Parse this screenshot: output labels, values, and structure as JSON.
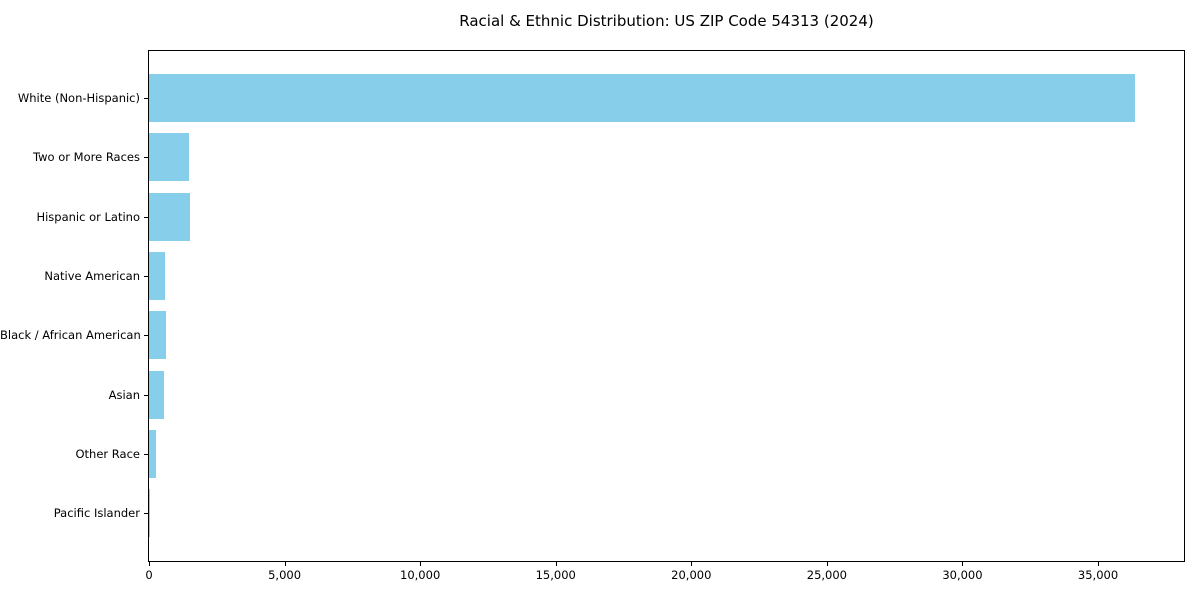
{
  "chart_data": {
    "type": "bar",
    "orientation": "horizontal",
    "title": "Racial & Ethnic Distribution: US ZIP Code 54313 (2024)",
    "categories": [
      "White (Non-Hispanic)",
      "Two or More Races",
      "Hispanic or Latino",
      "Native American",
      "Black / African American",
      "Asian",
      "Other Race",
      "Pacific Islander"
    ],
    "values": [
      36350,
      1470,
      1500,
      600,
      640,
      560,
      260,
      20
    ],
    "xlim": [
      0,
      38170
    ],
    "x_ticks": [
      0,
      5000,
      10000,
      15000,
      20000,
      25000,
      30000,
      35000
    ],
    "x_tick_labels": [
      "0",
      "5,000",
      "10,000",
      "15,000",
      "20,000",
      "25,000",
      "30,000",
      "35,000"
    ],
    "xlabel": "",
    "ylabel": "",
    "grid": false,
    "legend": "none",
    "bar_color": "#87CEEB",
    "axis_color": "#000000",
    "background_color": "#FFFFFF"
  }
}
